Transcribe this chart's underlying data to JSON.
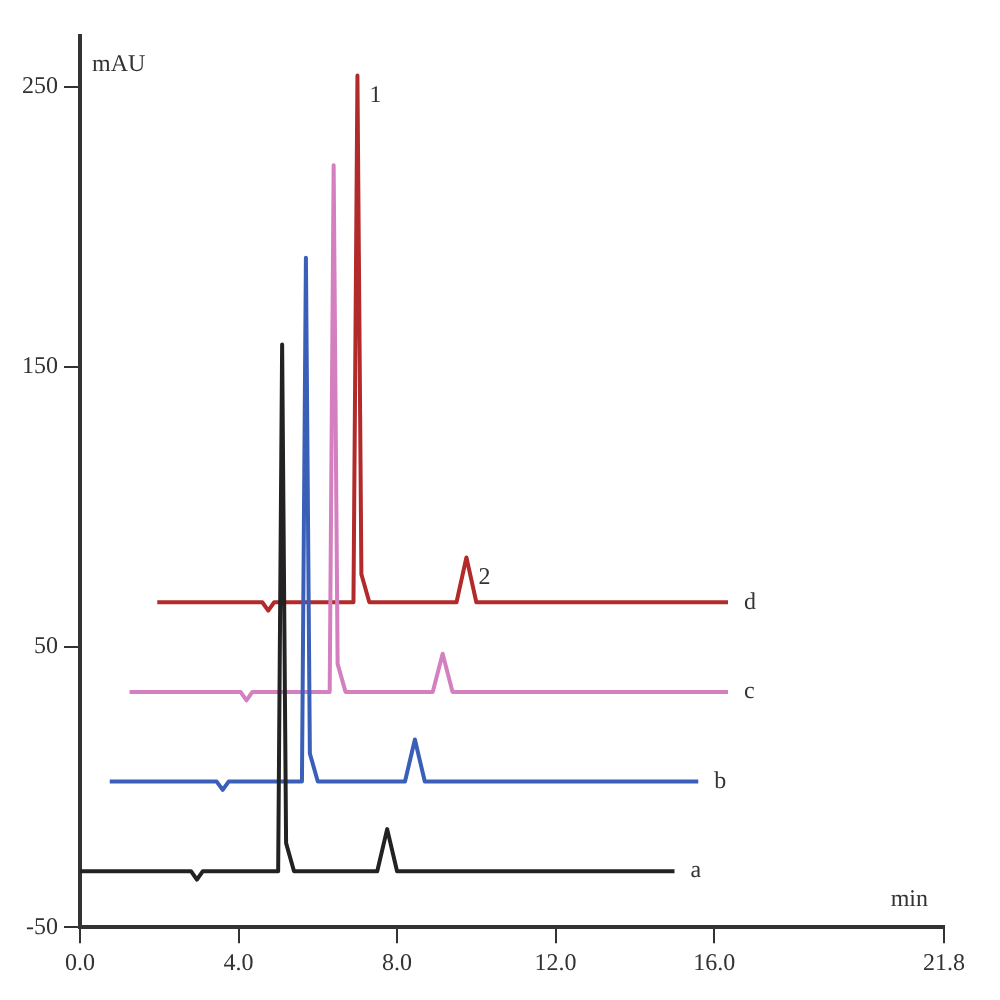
{
  "chart_data": {
    "type": "line",
    "xlabel": "min",
    "ylabel": "mAU",
    "xlim": [
      0,
      21.8
    ],
    "xticks": [
      {
        "value": 0,
        "label": "0.0"
      },
      {
        "value": 4,
        "label": "4.0"
      },
      {
        "value": 8,
        "label": "8.0"
      },
      {
        "value": 12,
        "label": "12.0"
      },
      {
        "value": 16,
        "label": "16.0"
      },
      {
        "value": 21.8,
        "label": "21.8"
      }
    ],
    "ylim": [
      -50,
      268
    ],
    "yticks": [
      -50,
      50,
      150,
      250
    ],
    "series": [
      {
        "name": "a",
        "color": "#222222",
        "x": [
          0,
          2.8,
          2.95,
          3.1,
          4.9,
          5.0,
          5.1,
          5.2,
          5.4,
          7.5,
          7.75,
          8.0,
          15
        ],
        "values": [
          -30,
          -30,
          -33,
          -30,
          -30,
          -30,
          158,
          -20,
          -30,
          -30,
          -15,
          -30,
          -30
        ]
      },
      {
        "name": "b",
        "color": "#3a5fb8",
        "x": [
          0.75,
          3.45,
          3.6,
          3.75,
          5.5,
          5.6,
          5.7,
          5.8,
          6.0,
          8.2,
          8.45,
          8.7,
          15.6
        ],
        "values": [
          2,
          2,
          -1,
          2,
          2,
          2,
          189,
          12,
          2,
          2,
          17,
          2,
          2
        ]
      },
      {
        "name": "c",
        "color": "#d47fc0",
        "x": [
          1.25,
          4.05,
          4.2,
          4.35,
          6.2,
          6.3,
          6.4,
          6.5,
          6.7,
          8.9,
          9.15,
          9.4,
          16.35
        ],
        "values": [
          34,
          34,
          31,
          34,
          34,
          34,
          222,
          44,
          34,
          34,
          47.6,
          34,
          34
        ]
      },
      {
        "name": "d",
        "color": "#b22a2a",
        "x": [
          1.95,
          4.6,
          4.75,
          4.9,
          6.8,
          6.9,
          7.0,
          7.1,
          7.3,
          9.5,
          9.75,
          10.0,
          16.35
        ],
        "values": [
          66,
          66,
          63,
          66,
          66,
          66,
          254,
          76,
          66,
          66,
          82,
          66,
          66
        ]
      }
    ],
    "annotations": [
      {
        "text": "1",
        "x": 7.0,
        "y": 254
      },
      {
        "text": "2",
        "x": 9.75,
        "y": 82
      }
    ],
    "grid": false,
    "legend": false,
    "marker": "none",
    "line_style": "solid"
  }
}
